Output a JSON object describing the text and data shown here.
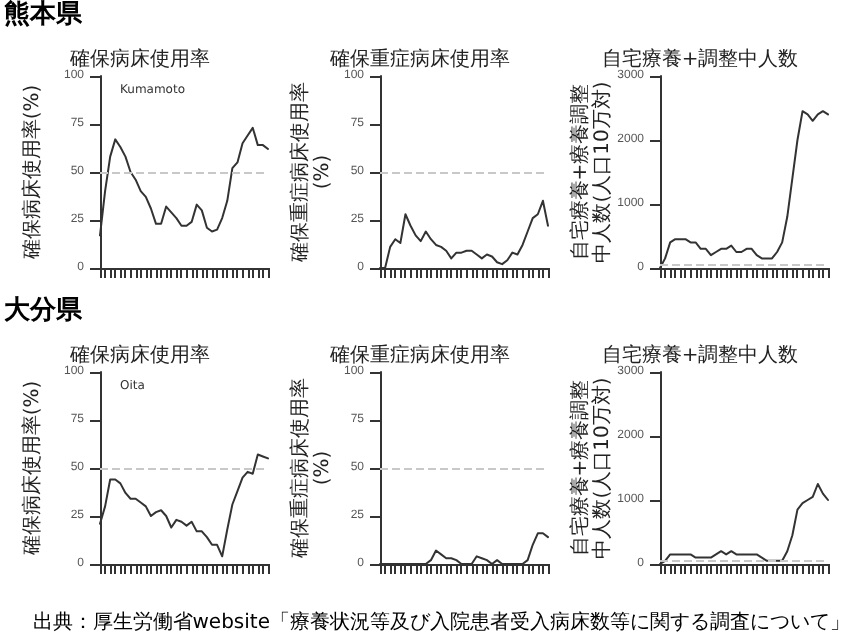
{
  "chart_data": [
    {
      "type": "line",
      "title": "確保病床使用率",
      "ylabel": "確保病床使用率(%)",
      "annotations": [
        "熊本県",
        "Kumamoto"
      ],
      "categories": [
        null,
        null,
        null,
        null,
        null,
        null,
        null,
        null,
        null,
        null,
        null,
        null,
        null,
        null,
        null,
        null,
        null,
        null,
        null,
        null,
        null,
        null,
        null,
        null,
        null,
        null,
        null,
        null,
        null,
        null,
        null,
        null,
        null,
        null
      ],
      "color": "#333333",
      "line_style": "solid",
      "grid": false,
      "tick_labels": "y",
      "ylim": [
        0,
        100
      ],
      "yticks": [
        0,
        25,
        50,
        75,
        100
      ],
      "ref_lines": [
        {
          "axis": "y",
          "value": 50,
          "color": "#c8c8c8",
          "line_style": "dashed"
        }
      ],
      "values": [
        17,
        40,
        58,
        67,
        63,
        58,
        50,
        46,
        40,
        37,
        31,
        23,
        23,
        32,
        29,
        26,
        22,
        22,
        24,
        33,
        30,
        21,
        19,
        20,
        26,
        35,
        52,
        55,
        65,
        69,
        73,
        64,
        64,
        62
      ]
    },
    {
      "type": "line",
      "title": "確保重症病床使用率",
      "ylabel": "確保重症病床使用率(%)",
      "categories": [
        null,
        null,
        null,
        null,
        null,
        null,
        null,
        null,
        null,
        null,
        null,
        null,
        null,
        null,
        null,
        null,
        null,
        null,
        null,
        null,
        null,
        null,
        null,
        null,
        null,
        null,
        null,
        null,
        null,
        null,
        null,
        null,
        null,
        null
      ],
      "color": "#333333",
      "line_style": "solid",
      "grid": false,
      "tick_labels": "y",
      "ylim": [
        0,
        100
      ],
      "yticks": [
        0,
        25,
        50,
        75,
        100
      ],
      "ref_lines": [
        {
          "axis": "y",
          "value": 50,
          "color": "#c8c8c8",
          "line_style": "dashed"
        }
      ],
      "values": [
        0,
        0,
        11,
        15,
        13,
        28,
        22,
        17,
        14,
        19,
        15,
        12,
        11,
        9,
        5,
        8,
        8,
        9,
        9,
        7,
        5,
        7,
        6,
        3,
        2,
        4,
        8,
        7,
        12,
        19,
        26,
        28,
        35,
        22
      ]
    },
    {
      "type": "line",
      "title": "自宅療養+調整中人数",
      "ylabel": "自宅療養+療養調整中人数(人口10万対)",
      "categories": [
        null,
        null,
        null,
        null,
        null,
        null,
        null,
        null,
        null,
        null,
        null,
        null,
        null,
        null,
        null,
        null,
        null,
        null,
        null,
        null,
        null,
        null,
        null,
        null,
        null,
        null,
        null,
        null,
        null,
        null,
        null,
        null,
        null,
        null
      ],
      "color": "#333333",
      "line_style": "solid",
      "grid": false,
      "tick_labels": "y",
      "ylim": [
        0,
        3000
      ],
      "yticks": [
        0,
        1000,
        2000,
        3000
      ],
      "ref_lines": [
        {
          "axis": "y",
          "value": 60,
          "color": "#c8c8c8",
          "line_style": "dashed"
        }
      ],
      "values": [
        0,
        150,
        400,
        450,
        450,
        450,
        400,
        400,
        300,
        300,
        200,
        250,
        300,
        300,
        350,
        250,
        250,
        300,
        300,
        200,
        150,
        150,
        150,
        250,
        400,
        800,
        1400,
        2000,
        2450,
        2400,
        2300,
        2400,
        2450,
        2400
      ]
    },
    {
      "type": "line",
      "title": "確保病床使用率",
      "ylabel": "確保病床使用率(%)",
      "annotations": [
        "大分県",
        "Oita"
      ],
      "categories": [
        null,
        null,
        null,
        null,
        null,
        null,
        null,
        null,
        null,
        null,
        null,
        null,
        null,
        null,
        null,
        null,
        null,
        null,
        null,
        null,
        null,
        null,
        null,
        null,
        null,
        null,
        null,
        null,
        null,
        null,
        null,
        null,
        null,
        null
      ],
      "color": "#333333",
      "line_style": "solid",
      "grid": false,
      "tick_labels": "y",
      "ylim": [
        0,
        100
      ],
      "yticks": [
        0,
        25,
        50,
        75,
        100
      ],
      "ref_lines": [
        {
          "axis": "y",
          "value": 50,
          "color": "#c8c8c8",
          "line_style": "dashed"
        }
      ],
      "values": [
        21,
        30,
        44,
        44,
        42,
        37,
        34,
        34,
        32,
        30,
        25,
        27,
        28,
        25,
        19,
        23,
        22,
        20,
        22,
        17,
        17,
        14,
        10,
        10,
        4,
        18,
        31,
        38,
        45,
        48,
        47,
        57,
        56,
        55
      ]
    },
    {
      "type": "line",
      "title": "確保重症病床使用率",
      "ylabel": "確保重症病床使用率(%)",
      "categories": [
        null,
        null,
        null,
        null,
        null,
        null,
        null,
        null,
        null,
        null,
        null,
        null,
        null,
        null,
        null,
        null,
        null,
        null,
        null,
        null,
        null,
        null,
        null,
        null,
        null,
        null,
        null,
        null,
        null,
        null,
        null,
        null,
        null,
        null
      ],
      "color": "#333333",
      "line_style": "solid",
      "grid": false,
      "tick_labels": "y",
      "ylim": [
        0,
        100
      ],
      "yticks": [
        0,
        25,
        50,
        75,
        100
      ],
      "ref_lines": [
        {
          "axis": "y",
          "value": 50,
          "color": "#c8c8c8",
          "line_style": "dashed"
        }
      ],
      "values": [
        0,
        0,
        0,
        0,
        0,
        0,
        0,
        0,
        0,
        0,
        2,
        7,
        5,
        3,
        3,
        2,
        0,
        0,
        0,
        4,
        3,
        2,
        0,
        2,
        0,
        0,
        0,
        0,
        0,
        2,
        10,
        16,
        16,
        14
      ]
    },
    {
      "type": "line",
      "title": "自宅療養+調整中人数",
      "ylabel": "自宅療養+療養調整中人数(人口10万対)",
      "annotations": [
        "出典：厚生労働省website「療養状況等及び入院患者受入病床数等に関する調査について」"
      ],
      "categories": [
        null,
        null,
        null,
        null,
        null,
        null,
        null,
        null,
        null,
        null,
        null,
        null,
        null,
        null,
        null,
        null,
        null,
        null,
        null,
        null,
        null,
        null,
        null,
        null,
        null,
        null,
        null,
        null,
        null,
        null,
        null,
        null,
        null,
        null
      ],
      "color": "#333333",
      "line_style": "solid",
      "grid": false,
      "tick_labels": "y",
      "ylim": [
        0,
        3000
      ],
      "yticks": [
        0,
        1000,
        2000,
        3000
      ],
      "ref_lines": [
        {
          "axis": "y",
          "value": 60,
          "color": "#c8c8c8",
          "line_style": "dashed"
        }
      ],
      "values": [
        0,
        50,
        150,
        150,
        150,
        150,
        150,
        100,
        100,
        100,
        100,
        150,
        200,
        150,
        200,
        150,
        150,
        150,
        150,
        150,
        100,
        50,
        50,
        50,
        50,
        200,
        450,
        850,
        950,
        1000,
        1050,
        1250,
        1100,
        1000
      ]
    }
  ]
}
